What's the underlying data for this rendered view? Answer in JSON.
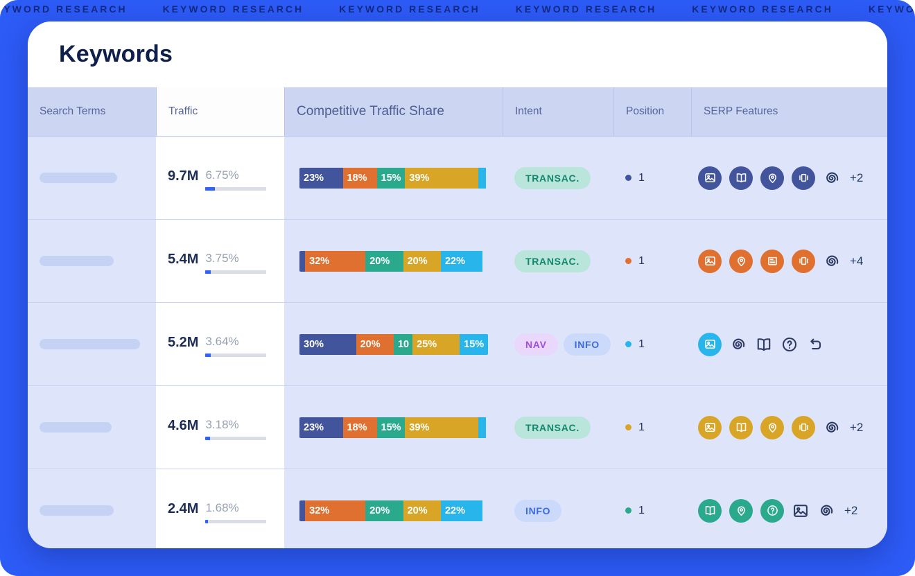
{
  "backdrop": {
    "repeated_text": "KEYWORD RESEARCH"
  },
  "header": {
    "title": "Keywords"
  },
  "table": {
    "columns": [
      "Search Terms",
      "Traffic",
      "Competitive Traffic Share",
      "Intent",
      "Position",
      "SERP Features"
    ]
  },
  "palette": {
    "navy": "#42549C",
    "orange": "#E0702F",
    "teal": "#2BA98C",
    "yellow": "#D8A526",
    "cyan": "#28B5EB",
    "purple": "#A04FE0",
    "blue": "#3D6AE3",
    "dark": "#26395F",
    "accent_blue": "#2F62F8"
  },
  "intent_styles": {
    "transactional": {
      "bg": "#B9E5DA",
      "fg": "#12876E"
    },
    "nav": {
      "bg": "#E9D8FB",
      "fg": "#A04FE0"
    },
    "info": {
      "bg": "#CBD9FB",
      "fg": "#3D6AE3"
    }
  },
  "rows": [
    {
      "search_term_pill_width": 112,
      "traffic": {
        "value": "9.7M",
        "percent": "6.75%",
        "bar_fill_pct": 15
      },
      "share": [
        {
          "label": "23%",
          "pct": 23,
          "color": "navy"
        },
        {
          "label": "18%",
          "pct": 18,
          "color": "orange"
        },
        {
          "label": "15%",
          "pct": 15,
          "color": "teal"
        },
        {
          "label": "39%",
          "pct": 39,
          "color": "yellow"
        },
        {
          "label": "",
          "pct": 4,
          "color": "cyan"
        }
      ],
      "intent": [
        {
          "label": "TRANSAC.",
          "style": "transactional"
        }
      ],
      "position": {
        "dot": "navy",
        "value": "1"
      },
      "serp": {
        "color": "navy",
        "icons": [
          {
            "name": "image",
            "filled": true
          },
          {
            "name": "book",
            "filled": true
          },
          {
            "name": "pin",
            "filled": true
          },
          {
            "name": "carousel",
            "filled": true
          },
          {
            "name": "spiral",
            "filled": false
          }
        ],
        "more": "+2"
      }
    },
    {
      "search_term_pill_width": 107,
      "traffic": {
        "value": "5.4M",
        "percent": "3.75%",
        "bar_fill_pct": 9
      },
      "share": [
        {
          "label": "",
          "pct": 3,
          "color": "navy"
        },
        {
          "label": "32%",
          "pct": 32,
          "color": "orange"
        },
        {
          "label": "20%",
          "pct": 20,
          "color": "teal"
        },
        {
          "label": "20%",
          "pct": 20,
          "color": "yellow"
        },
        {
          "label": "22%",
          "pct": 22,
          "color": "cyan"
        }
      ],
      "intent": [
        {
          "label": "TRANSAC.",
          "style": "transactional"
        }
      ],
      "position": {
        "dot": "orange",
        "value": "1"
      },
      "serp": {
        "color": "orange",
        "icons": [
          {
            "name": "image",
            "filled": true
          },
          {
            "name": "pin",
            "filled": true
          },
          {
            "name": "news",
            "filled": true
          },
          {
            "name": "carousel",
            "filled": true
          },
          {
            "name": "spiral",
            "filled": false
          }
        ],
        "more": "+4"
      }
    },
    {
      "search_term_pill_width": 145,
      "traffic": {
        "value": "5.2M",
        "percent": "3.64%",
        "bar_fill_pct": 8
      },
      "share": [
        {
          "label": "30%",
          "pct": 30,
          "color": "navy"
        },
        {
          "label": "20%",
          "pct": 20,
          "color": "orange"
        },
        {
          "label": "10",
          "pct": 10,
          "color": "teal"
        },
        {
          "label": "25%",
          "pct": 25,
          "color": "yellow"
        },
        {
          "label": "15%",
          "pct": 15,
          "color": "cyan"
        }
      ],
      "intent": [
        {
          "label": "NAV",
          "style": "nav"
        },
        {
          "label": "INFO",
          "style": "info"
        }
      ],
      "position": {
        "dot": "cyan",
        "value": "1"
      },
      "serp": {
        "color": "cyan",
        "icons": [
          {
            "name": "image",
            "filled": true
          },
          {
            "name": "spiral",
            "filled": false
          },
          {
            "name": "book",
            "filled": false
          },
          {
            "name": "question",
            "filled": false
          },
          {
            "name": "related",
            "filled": false
          }
        ],
        "more": ""
      }
    },
    {
      "search_term_pill_width": 104,
      "traffic": {
        "value": "4.6M",
        "percent": "3.18%",
        "bar_fill_pct": 7
      },
      "share": [
        {
          "label": "23%",
          "pct": 23,
          "color": "navy"
        },
        {
          "label": "18%",
          "pct": 18,
          "color": "orange"
        },
        {
          "label": "15%",
          "pct": 15,
          "color": "teal"
        },
        {
          "label": "39%",
          "pct": 39,
          "color": "yellow"
        },
        {
          "label": "",
          "pct": 4,
          "color": "cyan"
        }
      ],
      "intent": [
        {
          "label": "TRANSAC.",
          "style": "transactional"
        }
      ],
      "position": {
        "dot": "yellow",
        "value": "1"
      },
      "serp": {
        "color": "yellow",
        "icons": [
          {
            "name": "image",
            "filled": true
          },
          {
            "name": "book",
            "filled": true
          },
          {
            "name": "pin",
            "filled": true
          },
          {
            "name": "carousel",
            "filled": true
          },
          {
            "name": "spiral",
            "filled": false
          }
        ],
        "more": "+2"
      }
    },
    {
      "search_term_pill_width": 107,
      "traffic": {
        "value": "2.4M",
        "percent": "1.68%",
        "bar_fill_pct": 4
      },
      "share": [
        {
          "label": "",
          "pct": 3,
          "color": "navy"
        },
        {
          "label": "32%",
          "pct": 32,
          "color": "orange"
        },
        {
          "label": "20%",
          "pct": 20,
          "color": "teal"
        },
        {
          "label": "20%",
          "pct": 20,
          "color": "yellow"
        },
        {
          "label": "22%",
          "pct": 22,
          "color": "cyan"
        }
      ],
      "intent": [
        {
          "label": "INFO",
          "style": "info"
        }
      ],
      "position": {
        "dot": "teal",
        "value": "1"
      },
      "serp": {
        "color": "teal",
        "icons": [
          {
            "name": "book",
            "filled": true
          },
          {
            "name": "pin",
            "filled": true
          },
          {
            "name": "question",
            "filled": true
          },
          {
            "name": "image",
            "filled": false
          },
          {
            "name": "spiral",
            "filled": false
          }
        ],
        "more": "+2"
      }
    }
  ]
}
